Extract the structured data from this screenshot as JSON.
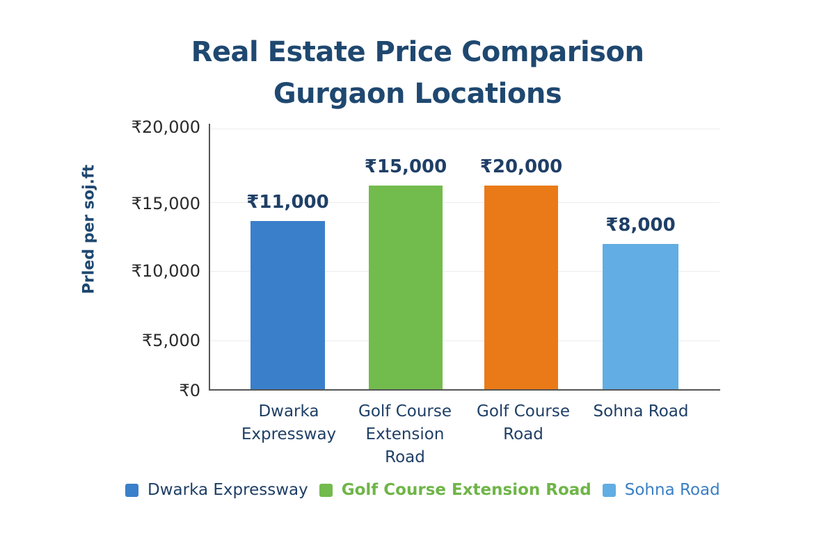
{
  "chart_data": {
    "type": "bar",
    "title": "Real Estate Price Comparison",
    "subtitle": "Gurgaon Locations",
    "xlabel": "",
    "ylabel": "Prled per soj.ft",
    "ylim": [
      0,
      20000
    ],
    "yticks": [
      "₹0",
      "₹5,000",
      "₹10,000",
      "₹15,000",
      "₹20,000"
    ],
    "grid": true,
    "categories": [
      "Dwarka Expressway",
      "Golf Course Extension Road",
      "Golf Course Road",
      "Sohna Road"
    ],
    "category_labels": [
      "Dwarka\nExpressway",
      "Golf Course\nExtension\nRoad",
      "Golf Course\nRoad",
      "Sohna Road"
    ],
    "values": [
      11000,
      15000,
      20000,
      8000
    ],
    "value_labels": [
      "₹11,000",
      "₹15,000",
      "₹20,000",
      "₹8,000"
    ],
    "colors": [
      "#3a7fca",
      "#72bb4d",
      "#ea7a17",
      "#62ade3"
    ],
    "legend_position": "bottom",
    "legend": [
      {
        "label": "Dwarka Expressway",
        "color": "#3a7fca",
        "text_color": "#1f3f66"
      },
      {
        "label": "Golf Course Extension Road",
        "color": "#72bb4d",
        "text_color": "#6fb548"
      },
      {
        "label": "Sohna Road",
        "color": "#62ade3",
        "text_color": "#3b7fc4"
      }
    ]
  }
}
